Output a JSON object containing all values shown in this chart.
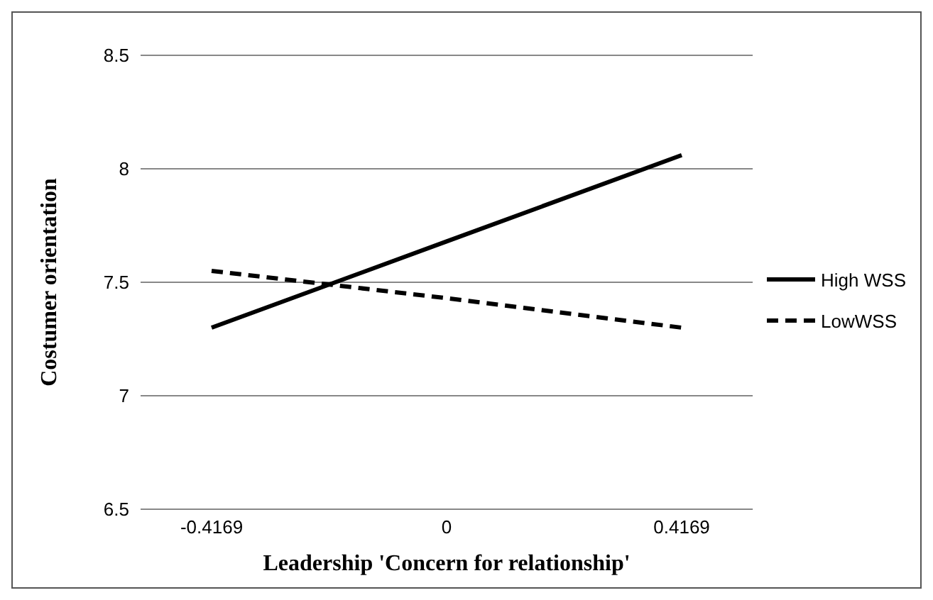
{
  "chart_data": {
    "type": "line",
    "xlabel": "Leadership 'Concern for relationship'",
    "ylabel": "Costumer orientation",
    "categories": [
      "-0.4169",
      "0",
      "0.4169"
    ],
    "series": [
      {
        "name": "High WSS",
        "color": "#000000",
        "values": [
          7.3,
          7.68,
          8.06
        ],
        "line_style": "solid"
      },
      {
        "name": "LowWSS",
        "color": "#000000",
        "values": [
          7.55,
          7.43,
          7.3
        ],
        "line_style": "dashed"
      }
    ],
    "ylim": [
      6.5,
      8.5
    ],
    "yticks": [
      6.5,
      7,
      7.5,
      8,
      8.5
    ],
    "grid": "y",
    "legend": "right",
    "marker": "none"
  }
}
